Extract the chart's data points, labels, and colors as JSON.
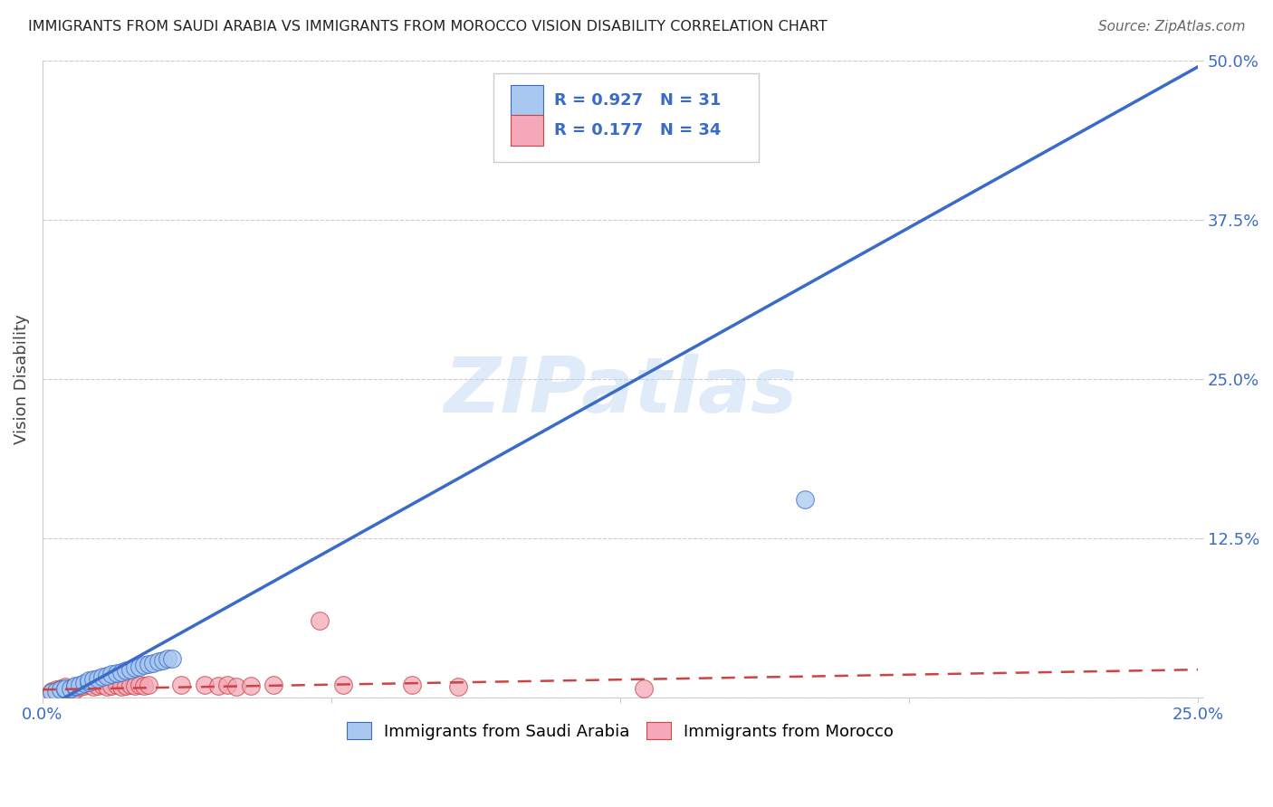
{
  "title": "IMMIGRANTS FROM SAUDI ARABIA VS IMMIGRANTS FROM MOROCCO VISION DISABILITY CORRELATION CHART",
  "source": "Source: ZipAtlas.com",
  "ylabel": "Vision Disability",
  "watermark": "ZIPatlas",
  "xlim": [
    0.0,
    0.25
  ],
  "ylim": [
    0.0,
    0.5
  ],
  "yticks": [
    0.0,
    0.125,
    0.25,
    0.375,
    0.5
  ],
  "ytick_labels": [
    "",
    "12.5%",
    "25.0%",
    "37.5%",
    "50.0%"
  ],
  "xtick_labels": [
    "0.0%",
    "",
    "",
    "",
    "25.0%"
  ],
  "saudi_R": 0.927,
  "saudi_N": 31,
  "morocco_R": 0.177,
  "morocco_N": 34,
  "saudi_color": "#a8c8f0",
  "morocco_color": "#f4a8b8",
  "saudi_line_color": "#3a6bc9",
  "morocco_line_color": "#cc4444",
  "saudi_scatter_x": [
    0.002,
    0.003,
    0.004,
    0.005,
    0.005,
    0.006,
    0.007,
    0.007,
    0.008,
    0.009,
    0.01,
    0.01,
    0.011,
    0.012,
    0.013,
    0.014,
    0.015,
    0.016,
    0.017,
    0.018,
    0.019,
    0.02,
    0.021,
    0.022,
    0.023,
    0.024,
    0.025,
    0.026,
    0.027,
    0.165,
    0.028
  ],
  "saudi_scatter_y": [
    0.004,
    0.005,
    0.006,
    0.006,
    0.007,
    0.007,
    0.008,
    0.009,
    0.01,
    0.011,
    0.012,
    0.013,
    0.014,
    0.015,
    0.016,
    0.017,
    0.018,
    0.019,
    0.02,
    0.021,
    0.022,
    0.023,
    0.024,
    0.025,
    0.026,
    0.027,
    0.028,
    0.029,
    0.03,
    0.155,
    0.03
  ],
  "morocco_scatter_x": [
    0.002,
    0.003,
    0.004,
    0.005,
    0.006,
    0.007,
    0.008,
    0.009,
    0.01,
    0.011,
    0.012,
    0.013,
    0.014,
    0.015,
    0.016,
    0.017,
    0.018,
    0.019,
    0.02,
    0.021,
    0.022,
    0.023,
    0.03,
    0.035,
    0.038,
    0.04,
    0.042,
    0.045,
    0.05,
    0.06,
    0.065,
    0.08,
    0.09,
    0.13
  ],
  "morocco_scatter_y": [
    0.005,
    0.006,
    0.007,
    0.008,
    0.007,
    0.006,
    0.008,
    0.009,
    0.01,
    0.008,
    0.009,
    0.01,
    0.008,
    0.009,
    0.01,
    0.008,
    0.009,
    0.01,
    0.009,
    0.01,
    0.009,
    0.01,
    0.01,
    0.01,
    0.009,
    0.01,
    0.008,
    0.009,
    0.01,
    0.06,
    0.01,
    0.01,
    0.008,
    0.007
  ],
  "saudi_line_x0": 0.0,
  "saudi_line_y0": -0.01,
  "saudi_line_x1": 0.255,
  "saudi_line_y1": 0.505,
  "morocco_line_x0": 0.0,
  "morocco_line_y0": 0.006,
  "morocco_line_x1": 0.255,
  "morocco_line_y1": 0.022,
  "background_color": "#ffffff",
  "grid_color": "#cccccc"
}
